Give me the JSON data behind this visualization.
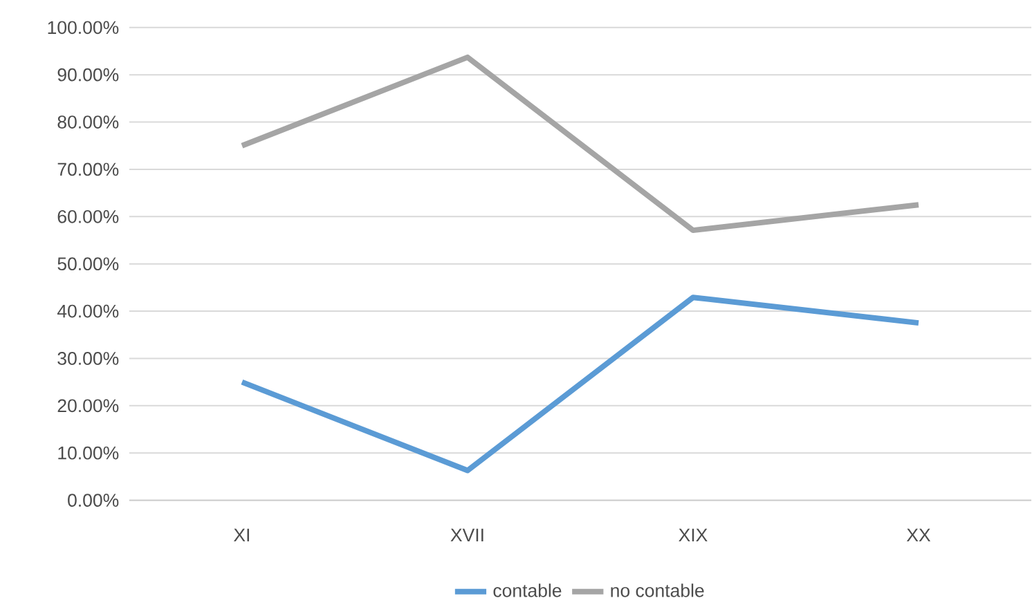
{
  "chart_data": {
    "type": "line",
    "categories": [
      "XI",
      "XVII",
      "XIX",
      "XX"
    ],
    "series": [
      {
        "name": "contable",
        "color": "#5b9bd5",
        "values": [
          25,
          6.3,
          42.9,
          37.5
        ]
      },
      {
        "name": "no contable",
        "color": "#a5a5a5",
        "values": [
          75,
          93.7,
          57.1,
          62.5
        ]
      }
    ],
    "ylim": [
      0,
      100
    ],
    "yticks": [
      {
        "value": 0,
        "label": "0.00%"
      },
      {
        "value": 10,
        "label": "10.00%"
      },
      {
        "value": 20,
        "label": "20.00%"
      },
      {
        "value": 30,
        "label": "30.00%"
      },
      {
        "value": 40,
        "label": "40.00%"
      },
      {
        "value": 50,
        "label": "50.00%"
      },
      {
        "value": 60,
        "label": "60.00%"
      },
      {
        "value": 70,
        "label": "70.00%"
      },
      {
        "value": 80,
        "label": "80.00%"
      },
      {
        "value": 90,
        "label": "90.00%"
      },
      {
        "value": 100,
        "label": "100.00%"
      }
    ],
    "grid": "y",
    "legend": "bottom",
    "marker": "none",
    "line_style": "solid"
  }
}
